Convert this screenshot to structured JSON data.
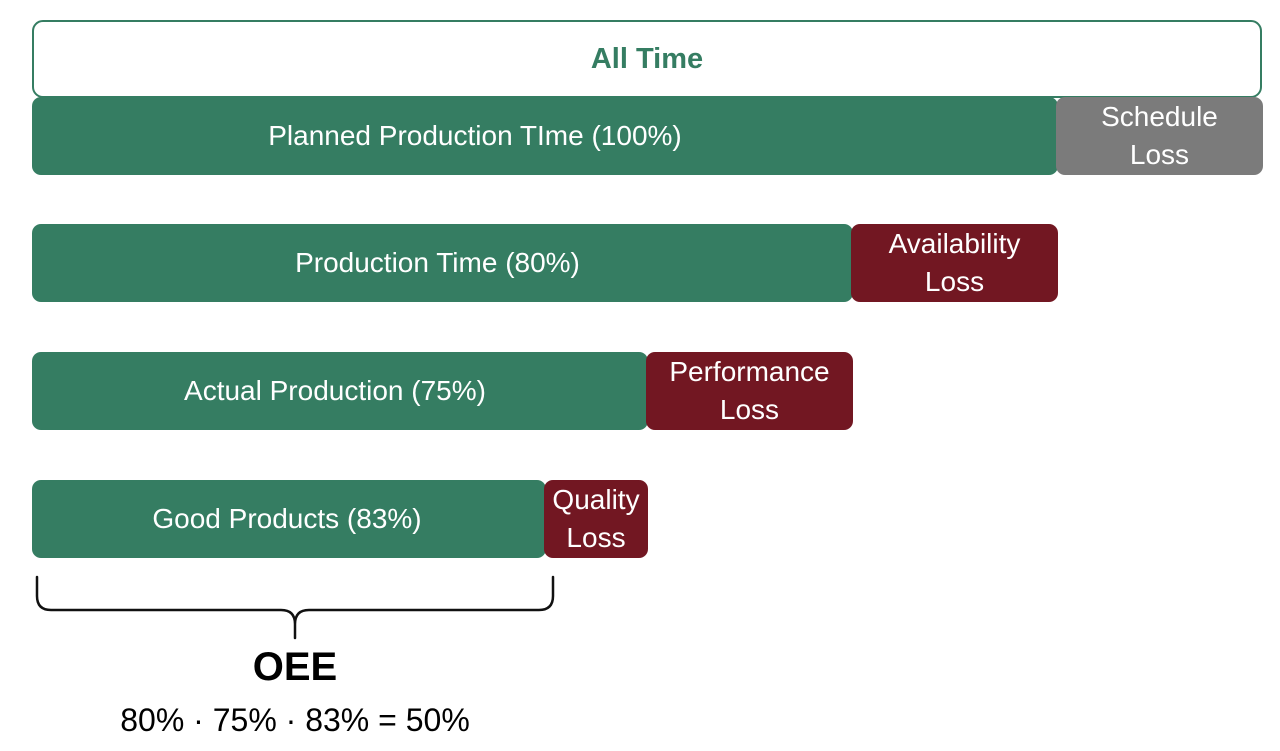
{
  "diagram": {
    "all_time": "All Time",
    "rows": [
      {
        "main": "Planned Production TIme (100%)",
        "loss": "Schedule\nLoss"
      },
      {
        "main": "Production Time (80%)",
        "loss": "Availability\nLoss"
      },
      {
        "main": "Actual Production (75%)",
        "loss": "Performance\nLoss"
      },
      {
        "main": "Good Products (83%)",
        "loss": "Quality\nLoss"
      }
    ],
    "oee": {
      "title": "OEE",
      "formula": "80% · 75% · 83% = 50%"
    }
  },
  "colors": {
    "green": "#357d62",
    "grey": "#7b7b7b",
    "red": "#721722"
  }
}
